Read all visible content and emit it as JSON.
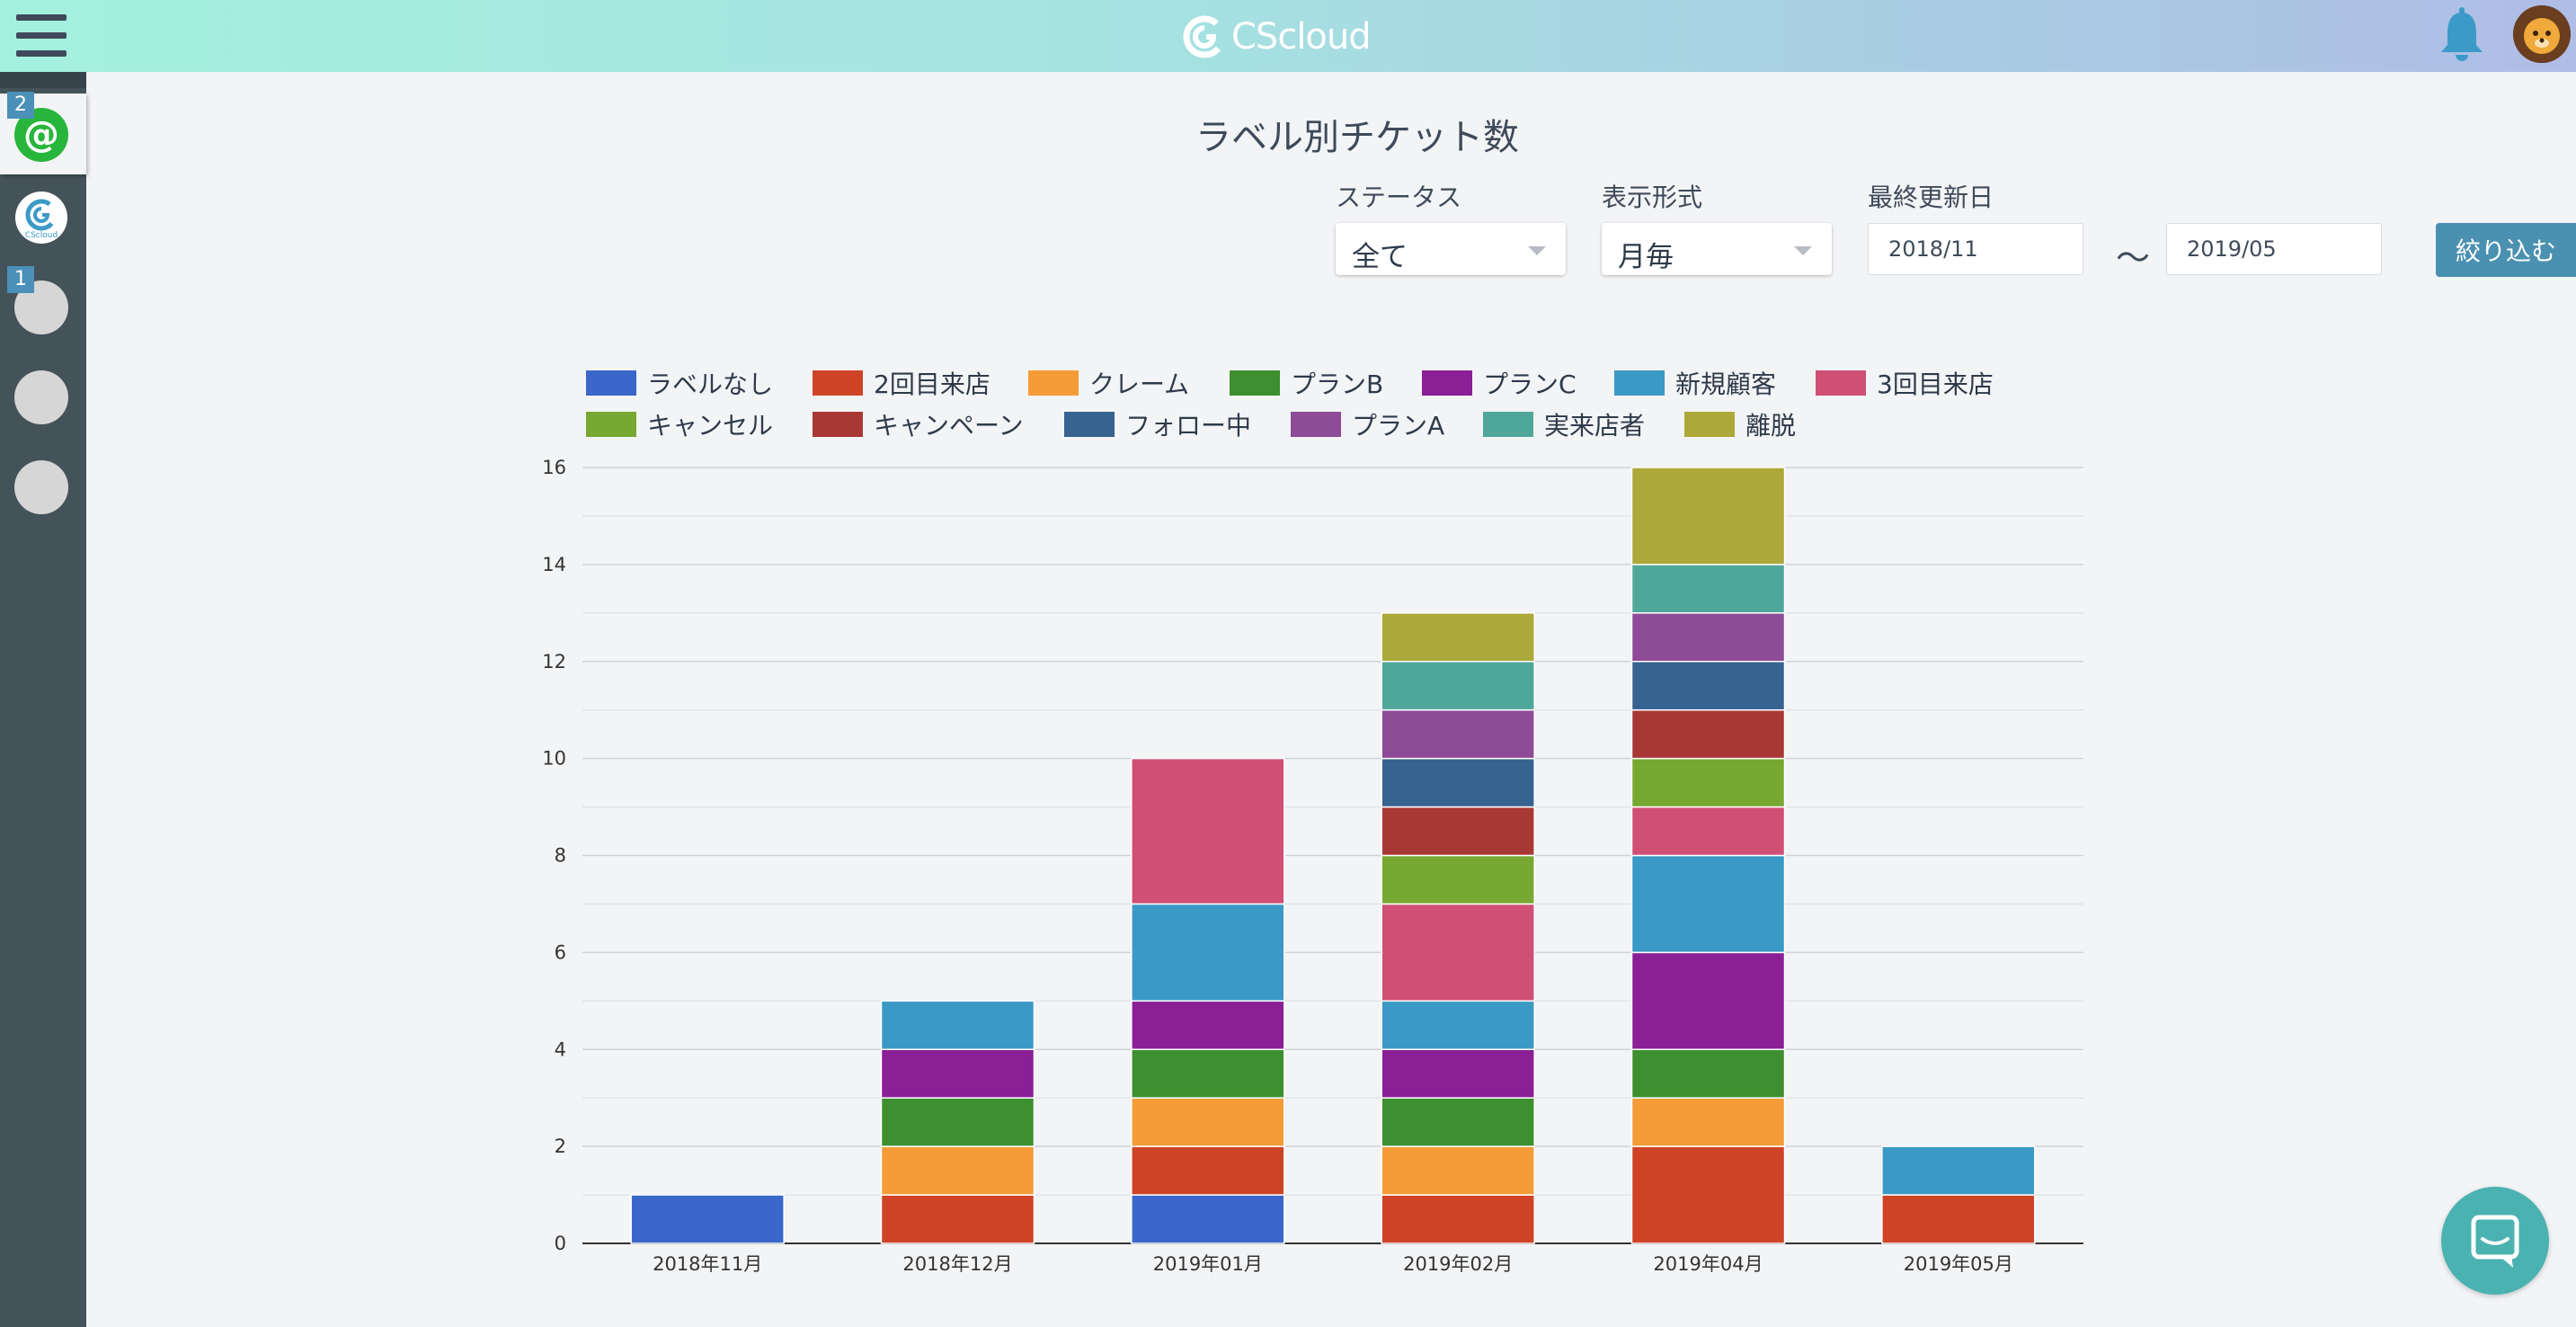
{
  "app": {
    "logo_text": "CScloud"
  },
  "sidebar": {
    "items": [
      {
        "name": "at-channel",
        "badge": "2"
      },
      {
        "name": "cscloud-channel",
        "badge": ""
      },
      {
        "name": "channel-3",
        "badge": "1"
      },
      {
        "name": "channel-4",
        "badge": ""
      },
      {
        "name": "channel-5",
        "badge": ""
      }
    ]
  },
  "filters": {
    "status_label": "ステータス",
    "status_value": "全て",
    "format_label": "表示形式",
    "format_value": "月毎",
    "date_label": "最終更新日",
    "date_from": "2018/11",
    "date_tilde": "〜",
    "date_to": "2019/05",
    "submit_label": "絞り込む"
  },
  "colors": {
    "accent": "#4a90b0",
    "sidebar": "#44525a"
  },
  "chart_data": {
    "type": "bar",
    "stacked": true,
    "title": "ラベル別チケット数",
    "categories": [
      "2018年11月",
      "2018年12月",
      "2019年01月",
      "2019年02月",
      "2019年04月",
      "2019年05月"
    ],
    "ylim": [
      0,
      16
    ],
    "yticks": [
      "0",
      "2",
      "4",
      "6",
      "8",
      "10",
      "12",
      "14",
      "16"
    ],
    "grid": true,
    "legend_position": "top",
    "series": [
      {
        "name": "ラベルなし",
        "color": "#3a67c9",
        "values": [
          1,
          0,
          1,
          0,
          0,
          0
        ]
      },
      {
        "name": "2回目来店",
        "color": "#cf4326",
        "values": [
          0,
          1,
          1,
          1,
          2,
          1
        ]
      },
      {
        "name": "クレーム",
        "color": "#f39c38",
        "values": [
          0,
          1,
          1,
          1,
          1,
          0
        ]
      },
      {
        "name": "プランB",
        "color": "#3e8f2f",
        "values": [
          0,
          1,
          1,
          1,
          1,
          0
        ]
      },
      {
        "name": "プランC",
        "color": "#8a1f96",
        "values": [
          0,
          1,
          1,
          1,
          2,
          0
        ]
      },
      {
        "name": "新規顧客",
        "color": "#3b99c5",
        "values": [
          0,
          1,
          2,
          1,
          2,
          1
        ]
      },
      {
        "name": "3回目来店",
        "color": "#d04f75",
        "values": [
          0,
          0,
          3,
          2,
          1,
          0
        ]
      },
      {
        "name": "キャンセル",
        "color": "#77a832",
        "values": [
          0,
          0,
          0,
          1,
          1,
          0
        ]
      },
      {
        "name": "キャンペーン",
        "color": "#a83834",
        "values": [
          0,
          0,
          0,
          1,
          1,
          0
        ]
      },
      {
        "name": "フォロー中",
        "color": "#376391",
        "values": [
          0,
          0,
          0,
          1,
          1,
          0
        ]
      },
      {
        "name": "プランA",
        "color": "#8e4b98",
        "values": [
          0,
          0,
          0,
          1,
          1,
          0
        ]
      },
      {
        "name": "実来店者",
        "color": "#4fa79a",
        "values": [
          0,
          0,
          0,
          1,
          1,
          0
        ]
      },
      {
        "name": "離脱",
        "color": "#aca83a",
        "values": [
          0,
          0,
          0,
          1,
          2,
          0
        ]
      }
    ]
  }
}
